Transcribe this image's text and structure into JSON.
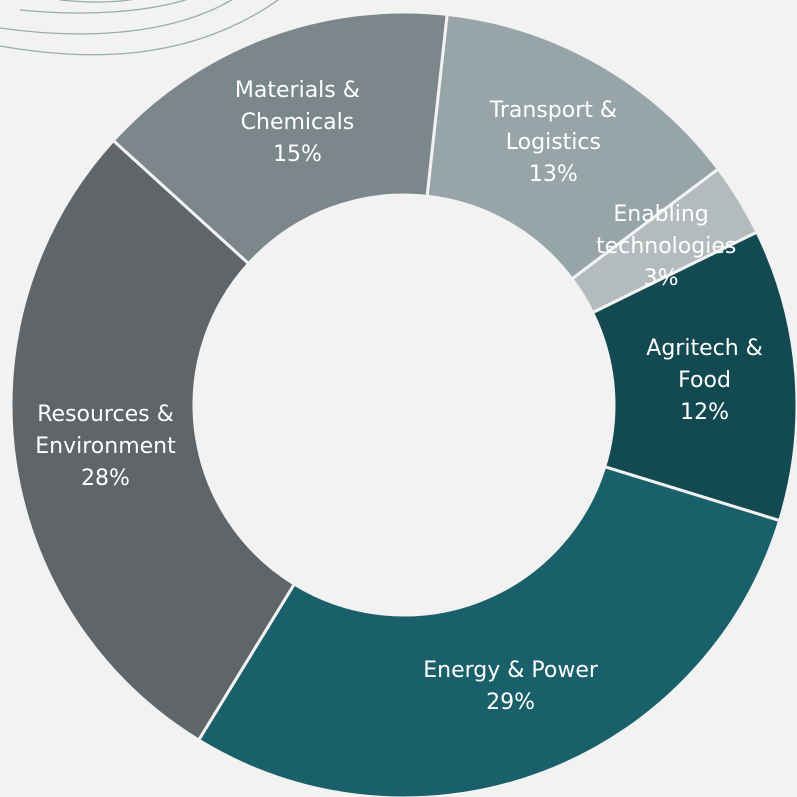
{
  "chart_data": {
    "type": "donut",
    "categories": [
      "Transport & Logistics",
      "Enabling technologies",
      "Agritech & Food",
      "Energy & Power",
      "Resources & Environment",
      "Materials & Chemicals"
    ],
    "values": [
      13,
      3,
      12,
      29,
      28,
      15
    ],
    "value_labels": [
      "13%",
      "3%",
      "12%",
      "29%",
      "28%",
      "15%"
    ],
    "colors": [
      "#97a4a8",
      "#b3bbbd",
      "#134a52",
      "#1a606a",
      "#5f6569",
      "#7b878b"
    ]
  }
}
